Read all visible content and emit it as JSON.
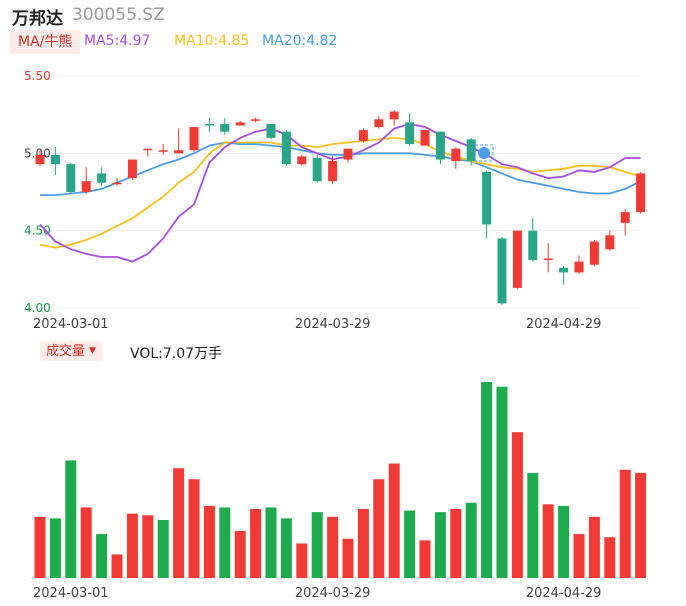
{
  "header": {
    "stock_name": "万邦达",
    "stock_code": "300055.SZ",
    "ma_toggle_label": "MA/牛熊",
    "ma5_label": "MA5:4.97",
    "ma10_label": "MA10:4.85",
    "ma20_label": "MA20:4.82"
  },
  "volume_panel": {
    "toggle_label": "成交量",
    "vol_label": "VOL:7.07万手"
  },
  "colors": {
    "up": "#f03a35",
    "down": "#1eab4e",
    "down_candle": "#2aa58a",
    "ma5": "#a64ee0",
    "ma10": "#f5c21a",
    "ma20": "#4a9de6",
    "grid": "#eeeeee"
  },
  "chart_data": {
    "type": "candlestick",
    "y_range": [
      4.0,
      5.5
    ],
    "y_ticks": [
      "5.50",
      "5.00",
      "4.50",
      "4.00"
    ],
    "x_tick_labels": [
      {
        "index": 2,
        "label": "2024-03-01"
      },
      {
        "index": 19,
        "label": "2024-03-29"
      },
      {
        "index": 34,
        "label": "2024-04-29"
      }
    ],
    "candles": [
      {
        "o": 4.93,
        "c": 4.99,
        "h": 5.02,
        "l": 4.92
      },
      {
        "o": 4.99,
        "c": 4.93,
        "h": 5.04,
        "l": 4.86
      },
      {
        "o": 4.93,
        "c": 4.75,
        "h": 4.94,
        "l": 4.74
      },
      {
        "o": 4.75,
        "c": 4.82,
        "h": 4.91,
        "l": 4.74
      },
      {
        "o": 4.87,
        "c": 4.81,
        "h": 4.91,
        "l": 4.79
      },
      {
        "o": 4.8,
        "c": 4.81,
        "h": 4.84,
        "l": 4.79
      },
      {
        "o": 4.84,
        "c": 4.96,
        "h": 4.96,
        "l": 4.83
      },
      {
        "o": 5.02,
        "c": 5.03,
        "h": 5.03,
        "l": 4.98
      },
      {
        "o": 5.01,
        "c": 5.02,
        "h": 5.06,
        "l": 4.99
      },
      {
        "o": 5.0,
        "c": 5.02,
        "h": 5.16,
        "l": 5.0
      },
      {
        "o": 5.02,
        "c": 5.17,
        "h": 5.17,
        "l": 5.01
      },
      {
        "o": 5.19,
        "c": 5.18,
        "h": 5.23,
        "l": 5.14
      },
      {
        "o": 5.19,
        "c": 5.14,
        "h": 5.23,
        "l": 5.12
      },
      {
        "o": 5.18,
        "c": 5.2,
        "h": 5.21,
        "l": 5.18
      },
      {
        "o": 5.21,
        "c": 5.22,
        "h": 5.23,
        "l": 5.2
      },
      {
        "o": 5.19,
        "c": 5.1,
        "h": 5.19,
        "l": 5.09
      },
      {
        "o": 5.14,
        "c": 4.93,
        "h": 5.15,
        "l": 4.92
      },
      {
        "o": 4.93,
        "c": 4.98,
        "h": 4.99,
        "l": 4.92
      },
      {
        "o": 4.97,
        "c": 4.82,
        "h": 4.99,
        "l": 4.81
      },
      {
        "o": 4.82,
        "c": 4.95,
        "h": 4.98,
        "l": 4.8
      },
      {
        "o": 4.96,
        "c": 5.03,
        "h": 5.03,
        "l": 4.94
      },
      {
        "o": 5.08,
        "c": 5.15,
        "h": 5.16,
        "l": 5.07
      },
      {
        "o": 5.17,
        "c": 5.22,
        "h": 5.24,
        "l": 5.16
      },
      {
        "o": 5.22,
        "c": 5.27,
        "h": 5.28,
        "l": 5.18
      },
      {
        "o": 5.2,
        "c": 5.06,
        "h": 5.26,
        "l": 5.05
      },
      {
        "o": 5.05,
        "c": 5.15,
        "h": 5.15,
        "l": 5.05
      },
      {
        "o": 5.14,
        "c": 4.96,
        "h": 5.14,
        "l": 4.93
      },
      {
        "o": 4.95,
        "c": 5.03,
        "h": 5.04,
        "l": 4.9
      },
      {
        "o": 5.09,
        "c": 4.95,
        "h": 5.1,
        "l": 4.92
      },
      {
        "o": 4.88,
        "c": 4.54,
        "h": 4.89,
        "l": 4.45
      },
      {
        "o": 4.45,
        "c": 4.03,
        "h": 4.46,
        "l": 4.02
      },
      {
        "o": 4.13,
        "c": 4.5,
        "h": 4.5,
        "l": 4.12
      },
      {
        "o": 4.5,
        "c": 4.31,
        "h": 4.58,
        "l": 4.3
      },
      {
        "o": 4.31,
        "c": 4.32,
        "h": 4.42,
        "l": 4.23
      },
      {
        "o": 4.26,
        "c": 4.23,
        "h": 4.27,
        "l": 4.15
      },
      {
        "o": 4.23,
        "c": 4.3,
        "h": 4.34,
        "l": 4.22
      },
      {
        "o": 4.28,
        "c": 4.43,
        "h": 4.44,
        "l": 4.27
      },
      {
        "o": 4.38,
        "c": 4.47,
        "h": 4.5,
        "l": 4.37
      },
      {
        "o": 4.55,
        "c": 4.62,
        "h": 4.64,
        "l": 4.47
      },
      {
        "o": 4.62,
        "c": 4.87,
        "h": 4.88,
        "l": 4.61
      }
    ],
    "ma5": [
      4.54,
      4.43,
      4.38,
      4.35,
      4.33,
      4.33,
      4.3,
      4.35,
      4.45,
      4.59,
      4.67,
      4.94,
      5.04,
      5.1,
      5.14,
      5.16,
      5.12,
      5.04,
      5.0,
      4.96,
      4.98,
      5.02,
      5.07,
      5.16,
      5.19,
      5.17,
      5.12,
      5.08,
      5.04,
      4.99,
      4.93,
      4.91,
      4.87,
      4.84,
      4.85,
      4.89,
      4.88,
      4.91,
      4.97,
      4.97
    ],
    "ma10": [
      4.41,
      4.39,
      4.41,
      4.44,
      4.48,
      4.53,
      4.58,
      4.65,
      4.72,
      4.81,
      4.88,
      5.0,
      5.07,
      5.07,
      5.07,
      5.07,
      5.05,
      5.05,
      5.04,
      5.06,
      5.07,
      5.08,
      5.09,
      5.1,
      5.09,
      5.06,
      5.01,
      4.98,
      4.95,
      4.93,
      4.91,
      4.9,
      4.88,
      4.89,
      4.9,
      4.92,
      4.92,
      4.91,
      4.88,
      4.85
    ],
    "ma20": [
      4.73,
      4.73,
      4.74,
      4.75,
      4.77,
      4.81,
      4.85,
      4.89,
      4.93,
      4.96,
      5.0,
      5.05,
      5.07,
      5.06,
      5.06,
      5.05,
      5.04,
      5.02,
      5.0,
      4.99,
      4.99,
      5.0,
      5.0,
      5.0,
      5.0,
      4.99,
      4.98,
      4.96,
      4.95,
      4.91,
      4.87,
      4.83,
      4.81,
      4.79,
      4.77,
      4.75,
      4.74,
      4.74,
      4.77,
      4.82
    ],
    "volume_max": 100,
    "volumes": [
      {
        "v": 39,
        "up": true
      },
      {
        "v": 38,
        "up": false
      },
      {
        "v": 75,
        "up": false
      },
      {
        "v": 45,
        "up": true
      },
      {
        "v": 28,
        "up": false
      },
      {
        "v": 15,
        "up": true
      },
      {
        "v": 41,
        "up": true
      },
      {
        "v": 40,
        "up": true
      },
      {
        "v": 37,
        "up": false
      },
      {
        "v": 70,
        "up": true
      },
      {
        "v": 63,
        "up": true
      },
      {
        "v": 46,
        "up": true
      },
      {
        "v": 45,
        "up": false
      },
      {
        "v": 30,
        "up": true
      },
      {
        "v": 44,
        "up": true
      },
      {
        "v": 45,
        "up": false
      },
      {
        "v": 38,
        "up": false
      },
      {
        "v": 22,
        "up": true
      },
      {
        "v": 42,
        "up": false
      },
      {
        "v": 39,
        "up": true
      },
      {
        "v": 25,
        "up": true
      },
      {
        "v": 44,
        "up": true
      },
      {
        "v": 63,
        "up": true
      },
      {
        "v": 73,
        "up": true
      },
      {
        "v": 43,
        "up": false
      },
      {
        "v": 24,
        "up": true
      },
      {
        "v": 42,
        "up": false
      },
      {
        "v": 44,
        "up": true
      },
      {
        "v": 48,
        "up": false
      },
      {
        "v": 125,
        "up": false
      },
      {
        "v": 122,
        "up": false
      },
      {
        "v": 93,
        "up": true
      },
      {
        "v": 67,
        "up": false
      },
      {
        "v": 47,
        "up": true
      },
      {
        "v": 46,
        "up": false
      },
      {
        "v": 28,
        "up": true
      },
      {
        "v": 39,
        "up": true
      },
      {
        "v": 26,
        "up": true
      },
      {
        "v": 69,
        "up": true
      },
      {
        "v": 67,
        "up": true
      }
    ]
  }
}
